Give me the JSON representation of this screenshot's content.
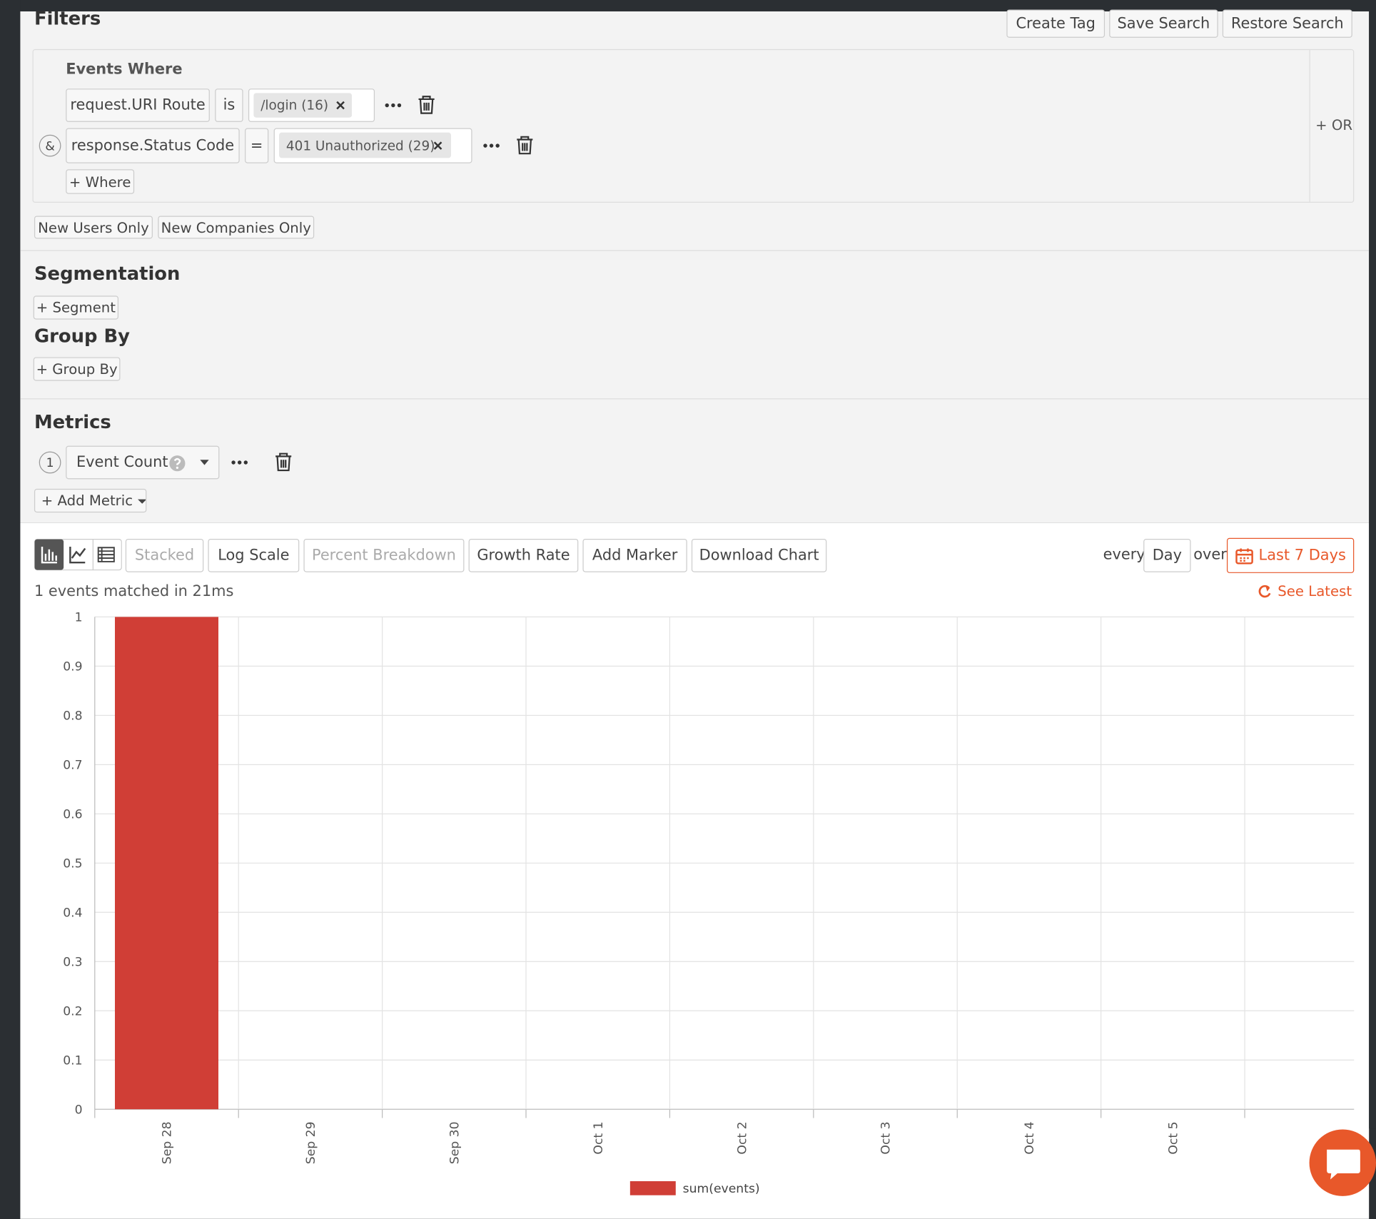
{
  "header": {
    "title": "Filters",
    "buttons": [
      "Create Tag",
      "Save Search",
      "Restore Search"
    ]
  },
  "filters": {
    "heading": "Events Where",
    "rows": [
      {
        "field": "request.URI Route",
        "operator": "is",
        "value": "/login (16)"
      },
      {
        "connector": "&",
        "field": "response.Status Code",
        "operator": "=",
        "value": "401 Unauthorized (29)"
      }
    ],
    "add_where": "+ Where",
    "or": "+ OR",
    "toggles": [
      "New Users Only",
      "New Companies Only"
    ]
  },
  "segmentation": {
    "title": "Segmentation",
    "button": "+ Segment"
  },
  "group_by": {
    "title": "Group By",
    "button": "+ Group By"
  },
  "metrics": {
    "title": "Metrics",
    "items": [
      {
        "index": "1",
        "name": "Event Count"
      }
    ],
    "add": "+ Add Metric"
  },
  "toolbar": {
    "buttons": [
      "Stacked",
      "Log Scale",
      "Percent Breakdown",
      "Growth Rate",
      "Add Marker",
      "Download Chart"
    ],
    "every": "every",
    "interval": "Day",
    "over": "over",
    "range": "Last 7 Days",
    "status": "1 events matched in 21ms",
    "see_latest": "See Latest"
  },
  "chart_data": {
    "type": "bar",
    "categories": [
      "Sep 28",
      "Sep 29",
      "Sep 30",
      "Oct 1",
      "Oct 2",
      "Oct 3",
      "Oct 4",
      "Oct 5"
    ],
    "series": [
      {
        "name": "sum(events)",
        "color": "#d03e36",
        "values": [
          1,
          0,
          0,
          0,
          0,
          0,
          0,
          0
        ]
      }
    ],
    "ylim": [
      0,
      1
    ],
    "yticks": [
      0,
      0.1,
      0.2,
      0.3,
      0.4,
      0.5,
      0.6,
      0.7,
      0.8,
      0.9,
      1
    ],
    "grid": true,
    "legend": "bottom"
  }
}
